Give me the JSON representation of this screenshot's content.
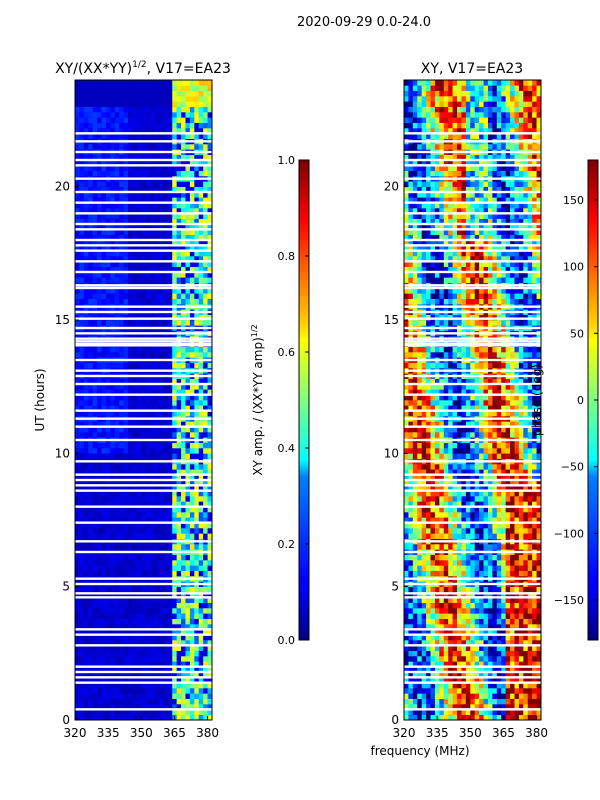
{
  "figure": {
    "suptitle": "2020-09-29 0.0-24.0",
    "shared_xlabel": "frequency (MHz)"
  },
  "chart_data": [
    {
      "type": "heatmap",
      "id": "amp",
      "title_prefix": "XY/(XX*YY)",
      "title_exponent": "1/2",
      "title_suffix": ", V17=EA23",
      "ylabel": "UT (hours)",
      "xlim": [
        320,
        382
      ],
      "ylim": [
        0,
        24
      ],
      "xticks": [
        320,
        335,
        350,
        365,
        380
      ],
      "yticks": [
        0,
        5,
        10,
        15,
        20
      ],
      "colorbar": {
        "label_prefix": "XY amp. / (XX*YY amp)",
        "label_exponent": "1/2",
        "range": [
          0.0,
          1.0
        ],
        "ticks": [
          "0.0",
          "0.2",
          "0.4",
          "0.6",
          "0.8",
          "1.0"
        ],
        "tick_values": [
          0.0,
          0.2,
          0.4,
          0.6,
          0.8,
          1.0
        ]
      },
      "colormap": "jet",
      "description_values": {
        "background_level": 0.05,
        "band_range_mhz": [
          364,
          382
        ],
        "band_level_range": [
          0.2,
          0.65
        ]
      }
    },
    {
      "type": "heatmap",
      "id": "phase",
      "title": "XY, V17=EA23",
      "xlim": [
        320,
        382
      ],
      "ylim": [
        0,
        24
      ],
      "xticks": [
        320,
        335,
        350,
        365,
        380
      ],
      "yticks": [
        0,
        5,
        10,
        15,
        20
      ],
      "colorbar": {
        "label": "phase (deg)",
        "range": [
          -180,
          180
        ],
        "ticks": [
          "150",
          "100",
          "50",
          "0",
          "−50",
          "−100",
          "−150"
        ],
        "tick_values": [
          150,
          100,
          50,
          0,
          -50,
          -100,
          -150
        ]
      },
      "colormap": "jet"
    }
  ],
  "flagged_rows_hours": [
    0.4,
    1.4,
    1.6,
    1.8,
    2.0,
    2.8,
    3.2,
    3.4,
    4.6,
    4.75,
    5.1,
    5.3,
    6.3,
    6.7,
    7.4,
    8.0,
    8.6,
    8.8,
    9.0,
    9.2,
    9.7,
    10.5,
    11.0,
    11.3,
    11.6,
    12.2,
    12.6,
    12.9,
    13.1,
    13.5,
    14.05,
    14.1,
    14.2,
    14.3,
    14.5,
    14.7,
    15.05,
    15.3,
    15.5,
    16.2,
    16.3,
    16.8,
    17.2,
    17.6,
    17.8,
    18.0,
    18.4,
    18.6,
    19.0,
    19.4,
    19.8,
    20.3,
    20.8,
    21.0,
    21.3,
    21.7,
    22.0
  ]
}
